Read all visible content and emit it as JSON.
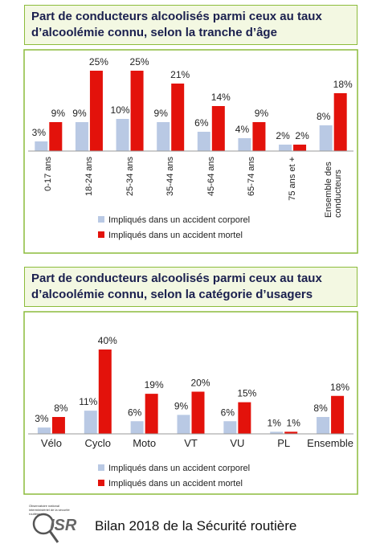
{
  "chart_data": [
    {
      "type": "bar",
      "title": "Part de conducteurs alcoolisés parmi ceux au taux d’alcoolémie connu, selon la tranche d’âge",
      "categories": [
        "0-17 ans",
        "18-24 ans",
        "25-34 ans",
        "35-44 ans",
        "45-64 ans",
        "65-74 ans",
        "75 ans et +",
        "Ensemble des conducteurs"
      ],
      "x_label_rotation": 90,
      "series": [
        {
          "name": "Impliqués dans un accident corporel",
          "color": "#b9c9e4",
          "values": [
            3,
            9,
            10,
            9,
            6,
            4,
            2,
            8
          ],
          "value_labels": [
            "3%",
            "9%",
            "10%",
            "9%",
            "6%",
            "4%",
            "2%",
            "8%"
          ]
        },
        {
          "name": "Impliqués dans un accident mortel",
          "color": "#e3120b",
          "values": [
            9,
            25,
            25,
            21,
            14,
            9,
            2,
            18
          ],
          "value_labels": [
            "9%",
            "25%",
            "25%",
            "21%",
            "14%",
            "9%",
            "2%",
            "18%"
          ]
        }
      ]
    },
    {
      "type": "bar",
      "title": "Part de conducteurs alcoolisés parmi ceux au taux d’alcoolémie connu, selon la catégorie d’usagers",
      "categories": [
        "Vélo",
        "Cyclo",
        "Moto",
        "VT",
        "VU",
        "PL",
        "Ensemble"
      ],
      "x_label_rotation": 0,
      "series": [
        {
          "name": "Impliqués dans un accident corporel",
          "color": "#b9c9e4",
          "values": [
            3,
            11,
            6,
            9,
            6,
            1,
            8
          ],
          "value_labels": [
            "3%",
            "11%",
            "6%",
            "9%",
            "6%",
            "1%",
            "8%"
          ]
        },
        {
          "name": "Impliqués dans un accident mortel",
          "color": "#e3120b",
          "values": [
            8,
            40,
            19,
            20,
            15,
            1,
            18
          ],
          "value_labels": [
            "8%",
            "40%",
            "19%",
            "20%",
            "15%",
            "1%",
            "18%"
          ]
        }
      ]
    }
  ],
  "footer": {
    "logo": "ISR",
    "logo_caption": "Observatoire national interministériel de la sécurité routière",
    "text": "Bilan 2018 de la Sécurité routière"
  }
}
